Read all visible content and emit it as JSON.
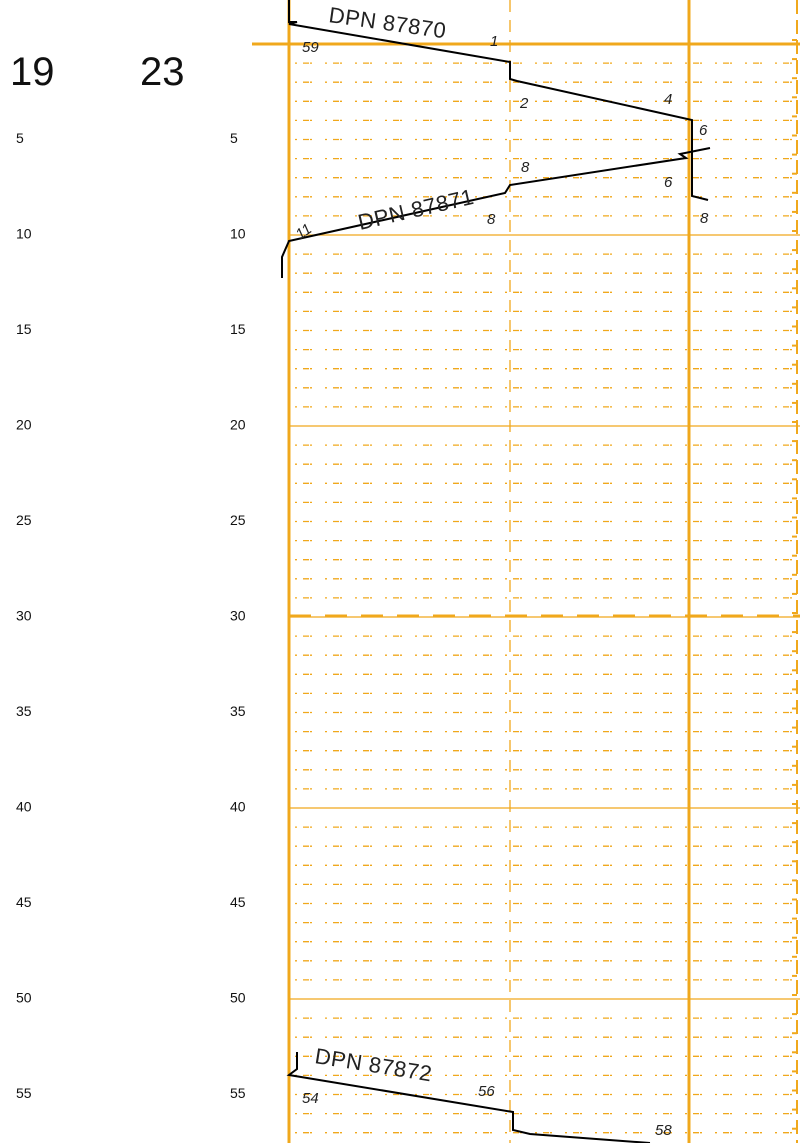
{
  "colors": {
    "grid": "#f0a81c",
    "line": "#000000",
    "text": "#111111"
  },
  "hours": [
    "19",
    "23"
  ],
  "minute_labels": [
    "5",
    "10",
    "15",
    "20",
    "25",
    "30",
    "35",
    "40",
    "45",
    "50",
    "55"
  ],
  "trains": [
    {
      "label": "DPN 87870",
      "marks": [
        {
          "text": "59",
          "col": "left"
        },
        {
          "text": "1",
          "col": "left-mid"
        },
        {
          "text": "2",
          "col": "mid"
        },
        {
          "text": "4",
          "col": "mid-right"
        },
        {
          "text": "6",
          "col": "right"
        }
      ]
    },
    {
      "label": "DPN 87871",
      "marks": [
        {
          "text": "6",
          "col": "right"
        },
        {
          "text": "8",
          "col": "right"
        },
        {
          "text": "8",
          "col": "mid"
        },
        {
          "text": "8",
          "col": "mid"
        },
        {
          "text": "11",
          "col": "left"
        }
      ]
    },
    {
      "label": "DPN 87872",
      "marks": [
        {
          "text": "54",
          "col": "left"
        },
        {
          "text": "56",
          "col": "left-mid"
        },
        {
          "text": "58",
          "col": "mid-right"
        }
      ]
    }
  ]
}
